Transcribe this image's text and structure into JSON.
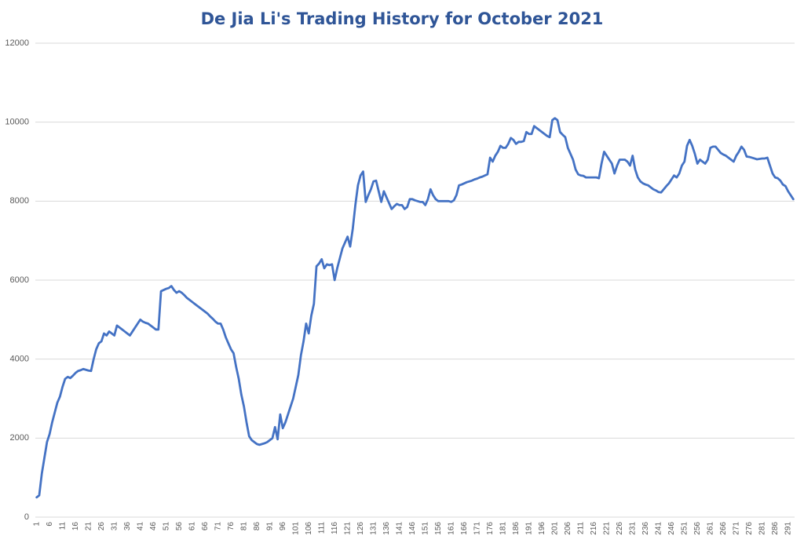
{
  "chart_data": {
    "type": "line",
    "title": "De Jia Li's Trading History for October 2021",
    "categories": [
      "1",
      null,
      null,
      null,
      null,
      "6",
      null,
      null,
      null,
      null,
      "11",
      null,
      null,
      null,
      null,
      "16",
      null,
      null,
      null,
      null,
      "21",
      null,
      null,
      null,
      null,
      "26",
      null,
      null,
      null,
      null,
      "31",
      null,
      null,
      null,
      null,
      "36",
      null,
      null,
      null,
      null,
      "41",
      null,
      null,
      null,
      null,
      "46",
      null,
      null,
      null,
      null,
      "51",
      null,
      null,
      null,
      null,
      "56",
      null,
      null,
      null,
      null,
      "61",
      null,
      null,
      null,
      null,
      "66",
      null,
      null,
      null,
      null,
      "71",
      null,
      null,
      null,
      null,
      "76",
      null,
      null,
      null,
      null,
      "81",
      null,
      null,
      null,
      null,
      "86",
      null,
      null,
      null,
      null,
      "91",
      null,
      null,
      null,
      null,
      "96",
      null,
      null,
      null,
      null,
      "101",
      null,
      null,
      null,
      null,
      "106",
      null,
      null,
      null,
      null,
      "111",
      null,
      null,
      null,
      null,
      "116",
      null,
      null,
      null,
      null,
      "121",
      null,
      null,
      null,
      null,
      "126",
      null,
      null,
      null,
      null,
      "131",
      null,
      null,
      null,
      null,
      "136",
      null,
      null,
      null,
      null,
      "141",
      null,
      null,
      null,
      null,
      "146",
      null,
      null,
      null,
      null,
      "151",
      null,
      null,
      null,
      null,
      "156",
      null,
      null,
      null,
      null,
      "161",
      null,
      null,
      null,
      null,
      "166",
      null,
      null,
      null,
      null,
      "171",
      null,
      null,
      null,
      null,
      "176",
      null,
      null,
      null,
      null,
      "181",
      null,
      null,
      null,
      null,
      "186",
      null,
      null,
      null,
      null,
      "191",
      null,
      null,
      null,
      null,
      "196",
      null,
      null,
      null,
      null,
      "201",
      null,
      null,
      null,
      null,
      "206",
      null,
      null,
      null,
      null,
      "211",
      null,
      null,
      null,
      null,
      "216",
      null,
      null,
      null,
      null,
      "221",
      null,
      null,
      null,
      null,
      "226",
      null,
      null,
      null,
      null,
      "231",
      null,
      null,
      null,
      null,
      "236",
      null,
      null,
      null,
      null,
      "241",
      null,
      null,
      null,
      null,
      "246",
      null,
      null,
      null,
      null,
      "251",
      null,
      null,
      null,
      null,
      "256",
      null,
      null,
      null,
      null,
      "261",
      null,
      null,
      null,
      null,
      "266",
      null,
      null,
      null,
      null,
      "271",
      null,
      null,
      null,
      null,
      "276",
      null,
      null,
      null,
      null,
      "281",
      null,
      null,
      null,
      null,
      "286",
      null,
      null,
      null,
      null,
      "291",
      null,
      null
    ],
    "values": [
      500,
      550,
      1100,
      1500,
      1900,
      2100,
      2400,
      2650,
      2900,
      3050,
      3300,
      3500,
      3550,
      3520,
      3580,
      3650,
      3700,
      3720,
      3750,
      3730,
      3710,
      3700,
      4000,
      4250,
      4400,
      4450,
      4650,
      4600,
      4700,
      4650,
      4600,
      4850,
      4800,
      4750,
      4700,
      4650,
      4600,
      4700,
      4800,
      4900,
      5000,
      4950,
      4920,
      4900,
      4850,
      4800,
      4750,
      4750,
      5720,
      5750,
      5780,
      5800,
      5850,
      5750,
      5680,
      5720,
      5680,
      5620,
      5550,
      5500,
      5450,
      5400,
      5350,
      5300,
      5250,
      5200,
      5150,
      5080,
      5020,
      4950,
      4900,
      4900,
      4750,
      4550,
      4400,
      4250,
      4150,
      3800,
      3500,
      3100,
      2800,
      2400,
      2050,
      1950,
      1900,
      1850,
      1830,
      1850,
      1870,
      1900,
      1950,
      2000,
      2280,
      1970,
      2600,
      2250,
      2400,
      2600,
      2800,
      3000,
      3300,
      3600,
      4100,
      4450,
      4900,
      4650,
      5100,
      5400,
      6350,
      6420,
      6530,
      6300,
      6400,
      6380,
      6400,
      6000,
      6300,
      6550,
      6800,
      6950,
      7100,
      6850,
      7300,
      7900,
      8400,
      8650,
      8750,
      7980,
      8150,
      8300,
      8500,
      8520,
      8250,
      7980,
      8250,
      8100,
      7950,
      7800,
      7870,
      7930,
      7900,
      7900,
      7800,
      7850,
      8050,
      8050,
      8020,
      8000,
      7980,
      7980,
      7900,
      8050,
      8300,
      8150,
      8050,
      8000,
      8000,
      8000,
      8000,
      8000,
      7980,
      8020,
      8150,
      8400,
      8420,
      8450,
      8480,
      8500,
      8520,
      8550,
      8570,
      8600,
      8620,
      8650,
      8680,
      9100,
      9000,
      9150,
      9250,
      9400,
      9350,
      9350,
      9450,
      9600,
      9550,
      9450,
      9500,
      9500,
      9520,
      9750,
      9700,
      9700,
      9900,
      9850,
      9800,
      9750,
      9700,
      9650,
      9620,
      10050,
      10100,
      10050,
      9750,
      9680,
      9620,
      9350,
      9200,
      9050,
      8800,
      8680,
      8650,
      8640,
      8600,
      8600,
      8600,
      8600,
      8600,
      8580,
      8950,
      9250,
      9150,
      9050,
      8950,
      8700,
      8900,
      9050,
      9050,
      9050,
      9000,
      8900,
      9150,
      8800,
      8600,
      8500,
      8450,
      8420,
      8400,
      8350,
      8300,
      8270,
      8230,
      8220,
      8300,
      8380,
      8450,
      8550,
      8650,
      8600,
      8700,
      8900,
      9000,
      9400,
      9550,
      9400,
      9200,
      8950,
      9050,
      9000,
      8950,
      9050,
      9350,
      9380,
      9380,
      9300,
      9220,
      9180,
      9150,
      9100,
      9050,
      9000,
      9150,
      9250,
      9380,
      9300,
      9130,
      9120,
      9100,
      9080,
      9060,
      9070,
      9080,
      9080,
      9100,
      8900,
      8700,
      8600,
      8580,
      8520,
      8420,
      8380,
      8250,
      8150,
      8050
    ],
    "color": "#4472c4",
    "ylim": [
      0,
      12000
    ],
    "yticks": [
      0,
      2000,
      4000,
      6000,
      8000,
      10000,
      12000
    ],
    "grid": true
  }
}
